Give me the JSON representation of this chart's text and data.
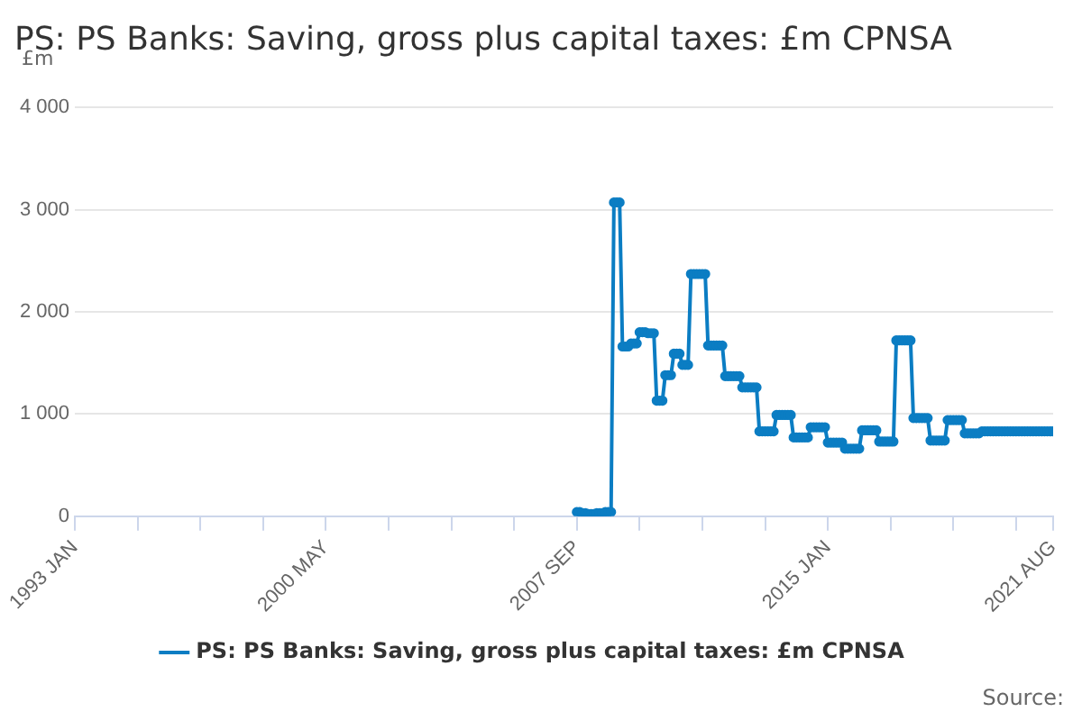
{
  "chart_data": {
    "type": "line",
    "title": "PS: PS Banks: Saving, gross plus capital taxes: £m CPNSA",
    "ylabel": "£m",
    "annotations": [
      "Source:"
    ],
    "xlim": [
      "1993-01",
      "2021-08"
    ],
    "xticks": [
      {
        "value": "1993-01",
        "label": "1993 JAN"
      },
      {
        "value": "1994-11",
        "label": null
      },
      {
        "value": "1996-09",
        "label": null
      },
      {
        "value": "1998-07",
        "label": null
      },
      {
        "value": "2000-05",
        "label": "2000 MAY"
      },
      {
        "value": "2002-03",
        "label": null
      },
      {
        "value": "2004-01",
        "label": null
      },
      {
        "value": "2005-11",
        "label": null
      },
      {
        "value": "2007-09",
        "label": "2007 SEP"
      },
      {
        "value": "2009-07",
        "label": null
      },
      {
        "value": "2011-05",
        "label": null
      },
      {
        "value": "2013-03",
        "label": null
      },
      {
        "value": "2015-01",
        "label": "2015 JAN"
      },
      {
        "value": "2016-11",
        "label": null
      },
      {
        "value": "2018-09",
        "label": null
      },
      {
        "value": "2020-07",
        "label": null
      },
      {
        "value": "2021-08",
        "label": "2021 AUG"
      }
    ],
    "ylim": [
      0,
      4000
    ],
    "yticks": [
      0,
      {
        "value": 1000,
        "label": "1 000"
      },
      {
        "value": 2000,
        "label": "2 000"
      },
      {
        "value": 3000,
        "label": "3 000"
      },
      {
        "value": 4000,
        "label": "4 000"
      }
    ],
    "grid": "y",
    "legend": "bottom",
    "marker": "circle",
    "line_style": "solid",
    "series": [
      {
        "name": "PS: PS Banks: Saving, gross plus capital taxes: £m CPNSA",
        "color": "#0b7dc3",
        "x": [
          "2007-09",
          "2007-10",
          "2007-11",
          "2007-12",
          "2008-01",
          "2008-02",
          "2008-03",
          "2008-04",
          "2008-05",
          "2008-06",
          "2008-07",
          "2008-08",
          "2008-09",
          "2008-10",
          "2008-11",
          "2008-12",
          "2009-01",
          "2009-02",
          "2009-03",
          "2009-04",
          "2009-05",
          "2009-06",
          "2009-07",
          "2009-08",
          "2009-09",
          "2009-10",
          "2009-11",
          "2009-12",
          "2010-01",
          "2010-02",
          "2010-03",
          "2010-04",
          "2010-05",
          "2010-06",
          "2010-07",
          "2010-08",
          "2010-09",
          "2010-10",
          "2010-11",
          "2010-12",
          "2011-01",
          "2011-02",
          "2011-03",
          "2011-04",
          "2011-05",
          "2011-06",
          "2011-07",
          "2011-08",
          "2011-09",
          "2011-10",
          "2011-11",
          "2011-12",
          "2012-01",
          "2012-02",
          "2012-03",
          "2012-04",
          "2012-05",
          "2012-06",
          "2012-07",
          "2012-08",
          "2012-09",
          "2012-10",
          "2012-11",
          "2012-12",
          "2013-01",
          "2013-02",
          "2013-03",
          "2013-04",
          "2013-05",
          "2013-06",
          "2013-07",
          "2013-08",
          "2013-09",
          "2013-10",
          "2013-11",
          "2013-12",
          "2014-01",
          "2014-02",
          "2014-03",
          "2014-04",
          "2014-05",
          "2014-06",
          "2014-07",
          "2014-08",
          "2014-09",
          "2014-10",
          "2014-11",
          "2014-12",
          "2015-01",
          "2015-02",
          "2015-03",
          "2015-04",
          "2015-05",
          "2015-06",
          "2015-07",
          "2015-08",
          "2015-09",
          "2015-10",
          "2015-11",
          "2015-12",
          "2016-01",
          "2016-02",
          "2016-03",
          "2016-04",
          "2016-05",
          "2016-06",
          "2016-07",
          "2016-08",
          "2016-09",
          "2016-10",
          "2016-11",
          "2016-12",
          "2017-01",
          "2017-02",
          "2017-03",
          "2017-04",
          "2017-05",
          "2017-06",
          "2017-07",
          "2017-08",
          "2017-09",
          "2017-10",
          "2017-11",
          "2017-12",
          "2018-01",
          "2018-02",
          "2018-03",
          "2018-04",
          "2018-05",
          "2018-06",
          "2018-07",
          "2018-08",
          "2018-09",
          "2018-10",
          "2018-11",
          "2018-12",
          "2019-01",
          "2019-02",
          "2019-03",
          "2019-04",
          "2019-05",
          "2019-06",
          "2019-07",
          "2019-08",
          "2019-09",
          "2019-10",
          "2019-11",
          "2019-12",
          "2020-01",
          "2020-02",
          "2020-03",
          "2020-04",
          "2020-05",
          "2020-06",
          "2020-07",
          "2020-08",
          "2020-09",
          "2020-10",
          "2020-11",
          "2020-12",
          "2021-01",
          "2021-02",
          "2021-03",
          "2021-04",
          "2021-05",
          "2021-06",
          "2021-07",
          "2021-08"
        ],
        "values": [
          40,
          40,
          30,
          30,
          20,
          20,
          20,
          30,
          30,
          30,
          40,
          40,
          40,
          3070,
          3070,
          3070,
          1660,
          1660,
          1660,
          1690,
          1690,
          1690,
          1800,
          1800,
          1800,
          1790,
          1790,
          1790,
          1130,
          1130,
          1130,
          1380,
          1380,
          1380,
          1590,
          1590,
          1590,
          1480,
          1480,
          1480,
          2370,
          2370,
          2370,
          2370,
          2370,
          2370,
          1670,
          1670,
          1670,
          1670,
          1670,
          1670,
          1370,
          1370,
          1370,
          1370,
          1370,
          1370,
          1260,
          1260,
          1260,
          1260,
          1260,
          1260,
          830,
          830,
          830,
          830,
          830,
          830,
          990,
          990,
          990,
          990,
          990,
          990,
          770,
          770,
          770,
          770,
          770,
          770,
          870,
          870,
          870,
          870,
          870,
          870,
          720,
          720,
          720,
          720,
          720,
          720,
          660,
          660,
          660,
          660,
          660,
          660,
          840,
          840,
          840,
          840,
          840,
          840,
          730,
          730,
          730,
          730,
          730,
          730,
          1720,
          1720,
          1720,
          1720,
          1720,
          1720,
          960,
          960,
          960,
          960,
          960,
          960,
          740,
          740,
          740,
          740,
          740,
          740,
          940,
          940,
          940,
          940,
          940,
          940,
          810,
          810,
          810,
          810,
          810,
          810,
          830,
          830,
          830,
          830,
          830,
          830,
          830,
          830,
          830,
          830,
          830,
          830,
          830,
          830,
          830,
          830,
          830,
          830,
          830,
          830,
          830,
          830,
          830,
          830,
          830,
          830
        ]
      }
    ]
  }
}
